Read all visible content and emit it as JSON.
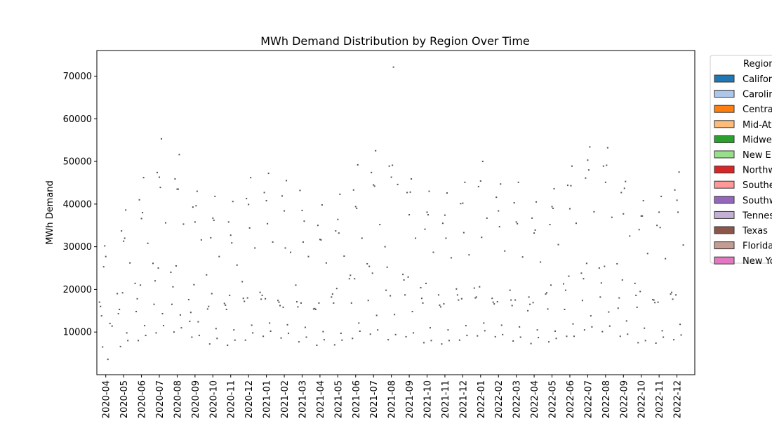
{
  "chart_data": {
    "type": "boxplot",
    "title": "MWh Demand Distribution by Region Over Time",
    "xlabel": "",
    "ylabel": "MWh Demand",
    "ylim": [
      0,
      76000
    ],
    "yticks": [
      10000,
      20000,
      30000,
      40000,
      50000,
      60000,
      70000
    ],
    "ytick_labels": [
      "10000",
      "20000",
      "30000",
      "40000",
      "50000",
      "60000",
      "70000"
    ],
    "grid": false,
    "legend": {
      "title": "Region",
      "placement": "outside-right",
      "entries": [
        "Califor",
        "Carolin",
        "Centra",
        "Mid-At",
        "Midwe",
        "New E",
        "Northw",
        "Southe",
        "Southw",
        "Tennes",
        "Texas",
        "Florida",
        "New Yo"
      ]
    },
    "regions": [
      {
        "name": "California",
        "color": "#1f77b4"
      },
      {
        "name": "Carolinas",
        "color": "#aec7e8"
      },
      {
        "name": "Central",
        "color": "#ff7f0e"
      },
      {
        "name": "Mid-Atlantic",
        "color": "#ffbb78"
      },
      {
        "name": "Midwest",
        "color": "#2ca02c"
      },
      {
        "name": "New England",
        "color": "#98df8a"
      },
      {
        "name": "Northwest",
        "color": "#d62728"
      },
      {
        "name": "Southeast",
        "color": "#ff9896"
      },
      {
        "name": "Southwest",
        "color": "#9467bd"
      },
      {
        "name": "Tennessee",
        "color": "#c5b0d5"
      },
      {
        "name": "Texas",
        "color": "#8c564b"
      },
      {
        "name": "Florida",
        "color": "#c49c94"
      },
      {
        "name": "New York",
        "color": "#e377c2"
      }
    ],
    "months": [
      "2020-04",
      "2020-05",
      "2020-06",
      "2020-07",
      "2020-08",
      "2020-09",
      "2020-10",
      "2020-11",
      "2020-12",
      "2021-01",
      "2021-02",
      "2021-03",
      "2021-04",
      "2021-05",
      "2021-06",
      "2021-07",
      "2021-08",
      "2021-09",
      "2021-10",
      "2021-11",
      "2021-12",
      "2022-01",
      "2022-02",
      "2022-03",
      "2022-04",
      "2022-05",
      "2022-06",
      "2022-07",
      "2022-08",
      "2022-09",
      "2022-10",
      "2022-11",
      "2022-12"
    ],
    "series": [
      {
        "month": "2020-04",
        "values": [
          17000,
          13800,
          25300,
          27700,
          3600,
          12000,
          11400,
          16000,
          6500,
          30200
        ]
      },
      {
        "month": "2020-05",
        "values": [
          19000,
          15300,
          33700,
          31300,
          38600,
          8000,
          26200,
          14300,
          6600,
          19200,
          32000,
          9800
        ]
      },
      {
        "month": "2020-06",
        "values": [
          21400,
          17800,
          41000,
          36600,
          46200,
          9200,
          30800,
          14800,
          8000,
          21000,
          38000,
          11500
        ]
      },
      {
        "month": "2020-07",
        "values": [
          26100,
          22000,
          47400,
          46300,
          55300,
          11500,
          35600,
          16500,
          9800,
          25000,
          43900,
          14300
        ]
      },
      {
        "month": "2020-08",
        "values": [
          24000,
          20600,
          45900,
          43500,
          51600,
          11000,
          35300,
          16500,
          10000,
          25500,
          43500,
          14000
        ]
      },
      {
        "month": "2020-09",
        "values": [
          17600,
          14600,
          39300,
          35800,
          43000,
          9200,
          31600,
          12500,
          8800,
          21100,
          39600,
          12400
        ]
      },
      {
        "month": "2020-10",
        "values": [
          23400,
          16000,
          32100,
          36700,
          41800,
          8500,
          27700,
          15400,
          7200,
          19000,
          36200,
          10800
        ]
      },
      {
        "month": "2020-11",
        "values": [
          16700,
          15300,
          35800,
          32700,
          40600,
          8100,
          25700,
          16300,
          6900,
          18600,
          30900,
          10500
        ]
      },
      {
        "month": "2020-12",
        "values": [
          21800,
          17200,
          41300,
          39900,
          46200,
          9800,
          29700,
          17900,
          8100,
          18000,
          34400,
          11600
        ]
      },
      {
        "month": "2021-01",
        "values": [
          19300,
          18600,
          42700,
          40800,
          47200,
          10200,
          31100,
          17700,
          9000,
          17800,
          35400,
          12100
        ]
      },
      {
        "month": "2021-02",
        "values": [
          17400,
          16200,
          41900,
          38400,
          45500,
          9700,
          28700,
          17000,
          8600,
          15800,
          29700,
          11700
        ]
      },
      {
        "month": "2021-03",
        "values": [
          21000,
          15900,
          43200,
          38500,
          36000,
          8800,
          27700,
          17100,
          7700,
          16800,
          31100,
          11100
        ]
      },
      {
        "month": "2021-04",
        "values": [
          15400,
          15300,
          35000,
          31700,
          39800,
          8200,
          26200,
          15500,
          6900,
          16800,
          31600,
          10100
        ]
      },
      {
        "month": "2021-05",
        "values": [
          18200,
          16800,
          33700,
          36400,
          42300,
          8100,
          27800,
          18900,
          7000,
          20200,
          33200,
          9700
        ]
      },
      {
        "month": "2021-06",
        "values": [
          22500,
          16800,
          43300,
          39400,
          49200,
          10200,
          32000,
          23300,
          8500,
          22500,
          39000,
          12100
        ]
      },
      {
        "month": "2021-07",
        "values": [
          26000,
          25400,
          47400,
          44500,
          52500,
          10500,
          35200,
          17400,
          9500,
          23800,
          44200,
          13900
        ]
      },
      {
        "month": "2021-08",
        "values": [
          30000,
          25200,
          48900,
          46300,
          72100,
          9400,
          44600,
          19800,
          8200,
          18500,
          49100,
          14100
        ]
      },
      {
        "month": "2021-09",
        "values": [
          23500,
          18700,
          42700,
          37500,
          45900,
          9800,
          32000,
          22200,
          8900,
          22900,
          42800,
          14800
        ]
      },
      {
        "month": "2021-10",
        "values": [
          20400,
          16800,
          34100,
          38100,
          43000,
          8000,
          28700,
          17900,
          7500,
          21400,
          37500,
          11000
        ]
      },
      {
        "month": "2021-11",
        "values": [
          18700,
          15900,
          35500,
          37400,
          42600,
          8000,
          27400,
          16300,
          7200,
          16600,
          32000,
          10500
        ]
      },
      {
        "month": "2021-12",
        "values": [
          20100,
          17500,
          40100,
          40200,
          45100,
          9200,
          28100,
          18700,
          8100,
          17800,
          33300,
          11500
        ]
      },
      {
        "month": "2022-01",
        "values": [
          20300,
          18200,
          44100,
          45400,
          50000,
          10300,
          36700,
          18000,
          9100,
          20600,
          32200,
          12100
        ]
      },
      {
        "month": "2022-02",
        "values": [
          17900,
          16600,
          41600,
          38400,
          44700,
          9400,
          29000,
          17000,
          8900,
          17100,
          34700,
          11600
        ]
      },
      {
        "month": "2022-03",
        "values": [
          19800,
          16200,
          40300,
          35800,
          45100,
          8800,
          27600,
          17500,
          7900,
          17500,
          35400,
          11200
        ]
      },
      {
        "month": "2022-04",
        "values": [
          15000,
          16500,
          36700,
          33200,
          40500,
          8700,
          26400,
          18200,
          7300,
          16900,
          33900,
          10500
        ]
      },
      {
        "month": "2022-05",
        "values": [
          18900,
          15400,
          35200,
          39400,
          43600,
          8500,
          30500,
          19200,
          7700,
          21000,
          39000,
          10200
        ]
      },
      {
        "month": "2022-06",
        "values": [
          21300,
          19800,
          44400,
          38900,
          48900,
          9000,
          35500,
          15300,
          9000,
          23100,
          44300,
          11900
        ]
      },
      {
        "month": "2022-07",
        "values": [
          23800,
          22500,
          46100,
          50300,
          53400,
          11200,
          38200,
          17400,
          10500,
          26100,
          48000,
          13800
        ]
      },
      {
        "month": "2022-08",
        "values": [
          25000,
          21500,
          48900,
          45100,
          53200,
          11400,
          36900,
          18200,
          10100,
          25400,
          49100,
          14700
        ]
      },
      {
        "month": "2022-09",
        "values": [
          26000,
          18000,
          42700,
          37700,
          45300,
          9500,
          32500,
          15600,
          9000,
          22200,
          43700,
          12600
        ]
      },
      {
        "month": "2022-10",
        "values": [
          21400,
          15800,
          34000,
          37200,
          40800,
          8000,
          28400,
          18600,
          7500,
          19500,
          37200,
          10900
        ]
      },
      {
        "month": "2022-11",
        "values": [
          17600,
          16900,
          35000,
          38100,
          41800,
          8800,
          27200,
          17500,
          7400,
          17000,
          34500,
          10300
        ]
      },
      {
        "month": "2022-12",
        "values": [
          18900,
          17700,
          43300,
          40900,
          47500,
          9300,
          30400,
          19300,
          8200,
          18700,
          38100,
          11800
        ]
      }
    ]
  }
}
